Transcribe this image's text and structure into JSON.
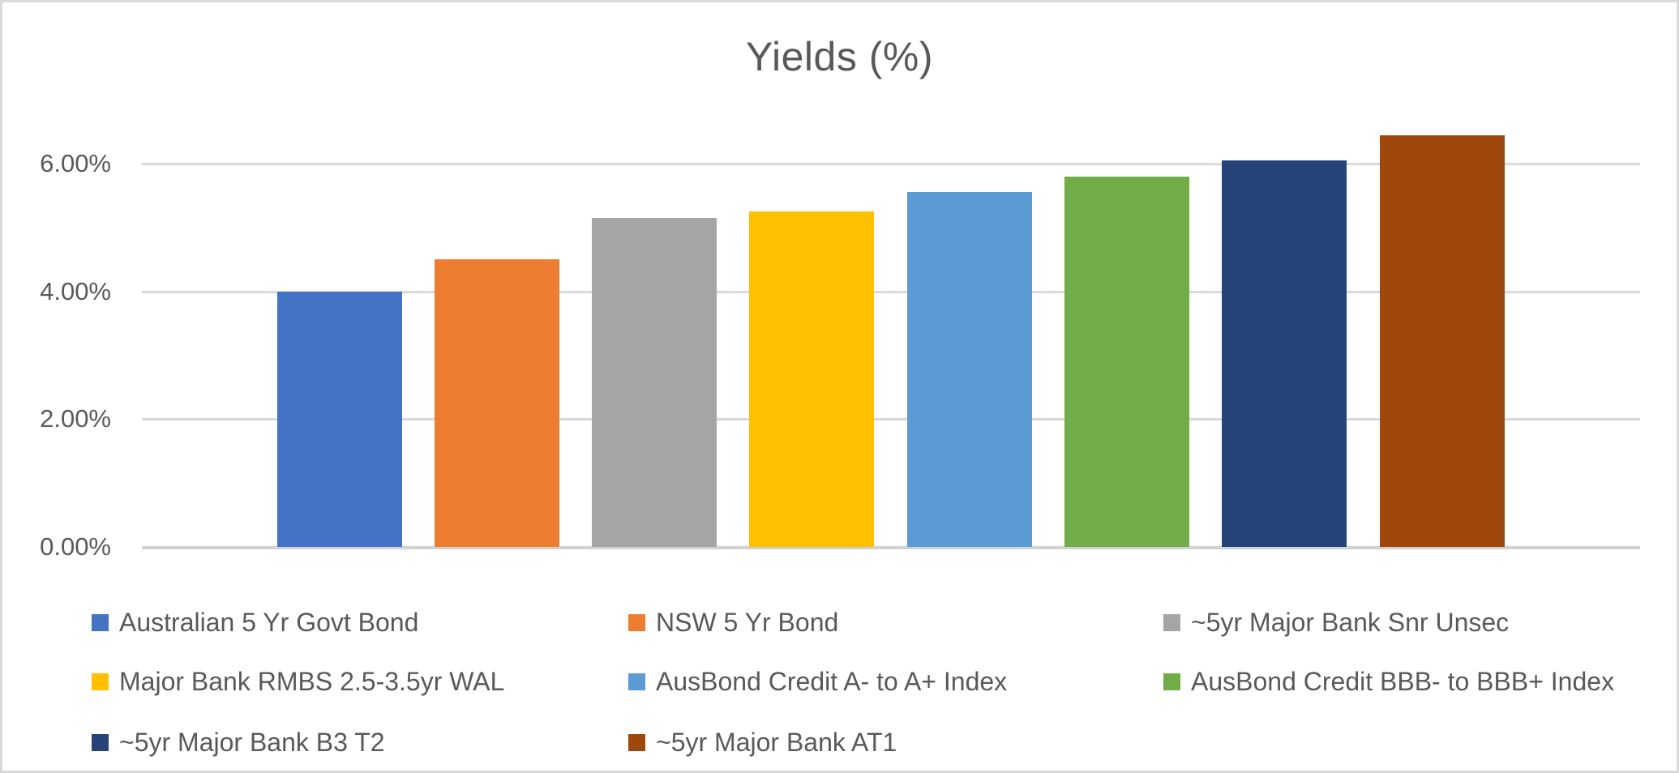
{
  "window": {
    "background": "#ffffff",
    "border_color": "#d9d9d9"
  },
  "chart_data": {
    "type": "bar",
    "title": "Yields (%)",
    "title_color": "#595959",
    "categories": [
      "Australian 5 Yr Govt Bond",
      "NSW 5 Yr Bond",
      "~5yr Major Bank Snr Unsec",
      "Major Bank RMBS 2.5-3.5yr WAL",
      "AusBond Credit A- to A+ Index",
      "AusBond Credit BBB- to BBB+ Index",
      "~5yr Major Bank B3 T2",
      "~5yr Major Bank AT1"
    ],
    "values": [
      4.0,
      4.5,
      5.15,
      5.25,
      5.55,
      5.8,
      6.05,
      6.45
    ],
    "unit": "%",
    "series_colors": [
      "#4472C4",
      "#ED7D31",
      "#A5A5A5",
      "#FFC000",
      "#5B9BD5",
      "#70AD47",
      "#264478",
      "#9E480E"
    ],
    "yticks": [
      {
        "value": 0,
        "label": "0.00%"
      },
      {
        "value": 2,
        "label": "2.00%"
      },
      {
        "value": 4,
        "label": "4.00%"
      },
      {
        "value": 6,
        "label": "6.00%"
      }
    ],
    "ylim": [
      0,
      7.2
    ],
    "xlabel": "",
    "ylabel": "",
    "grid": true,
    "gridline_color": "#d9d9d9",
    "axis_text_color": "#595959",
    "legend_position": "bottom",
    "legend_columns": 3
  }
}
